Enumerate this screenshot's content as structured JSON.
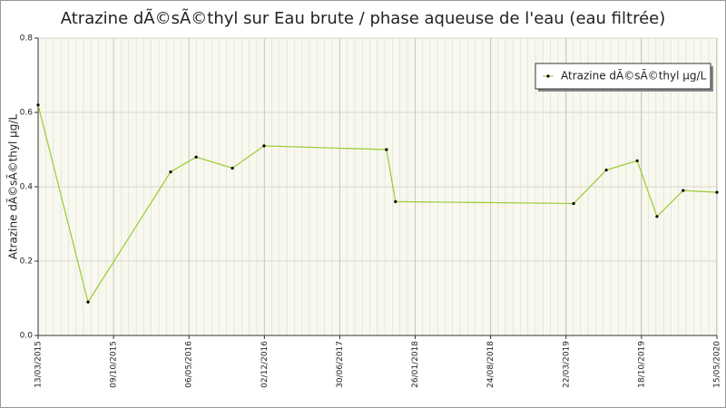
{
  "chart_data": {
    "type": "line",
    "title": "Atrazine dÃ©sÃ©thyl sur Eau brute / phase aqueuse de l'eau (eau filtrée)",
    "ylabel": "Atrazine dÃ©sÃ©thyl µg/L",
    "x": [
      "13/03/2015",
      "30/07/2015",
      "16/03/2016",
      "26/05/2016",
      "04/09/2016",
      "01/12/2016",
      "07/11/2017",
      "02/12/2017",
      "12/04/2019",
      "12/07/2019",
      "06/10/2019",
      "30/11/2019",
      "11/02/2020",
      "15/05/2020"
    ],
    "series": [
      {
        "name": "Atrazine dÃ©sÃ©thyl µg/L",
        "color": "#99cc33",
        "values": [
          0.62,
          0.09,
          0.44,
          0.48,
          0.45,
          0.51,
          0.5,
          0.36,
          0.355,
          0.445,
          0.47,
          0.32,
          0.39,
          0.385
        ]
      }
    ],
    "xlim": [
      "13/03/2015",
      "15/05/2020"
    ],
    "xticks": [
      "13/03/2015",
      "09/10/2015",
      "06/05/2016",
      "02/12/2016",
      "30/06/2017",
      "26/01/2018",
      "24/08/2018",
      "22/03/2019",
      "18/10/2019",
      "15/05/2020"
    ],
    "ylim": [
      0,
      0.8
    ],
    "yticks": [
      {
        "value": 0,
        "label": "0.0"
      },
      0.2,
      0.4,
      0.6,
      0.8
    ],
    "grid": true,
    "legend": "upper right"
  }
}
